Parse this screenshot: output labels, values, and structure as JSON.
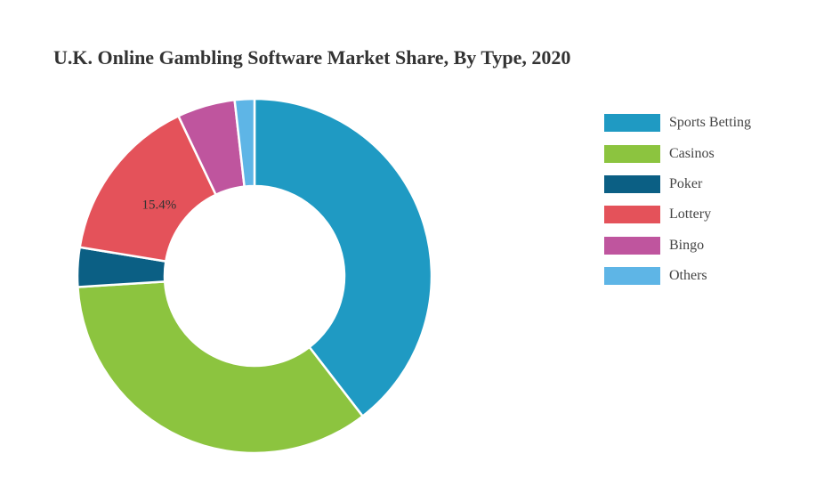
{
  "chart_data": {
    "type": "pie",
    "title": "U.K. Online Gambling Software Market Share, By Type, 2020",
    "donut": true,
    "legend_position": "right",
    "slices": [
      {
        "label": "Sports Betting",
        "value": 39.7,
        "color": "#1f9ac3"
      },
      {
        "label": "Casinos",
        "value": 34.6,
        "color": "#8cc43f"
      },
      {
        "label": "Poker",
        "value": 3.6,
        "color": "#0b5f84"
      },
      {
        "label": "Lottery",
        "value": 15.4,
        "color": "#e4525a"
      },
      {
        "label": "Bingo",
        "value": 5.3,
        "color": "#bf559e"
      },
      {
        "label": "Others",
        "value": 1.8,
        "color": "#5eb5e6"
      }
    ],
    "data_labels": [
      {
        "label": "Lottery",
        "text": "15.4%"
      }
    ]
  }
}
